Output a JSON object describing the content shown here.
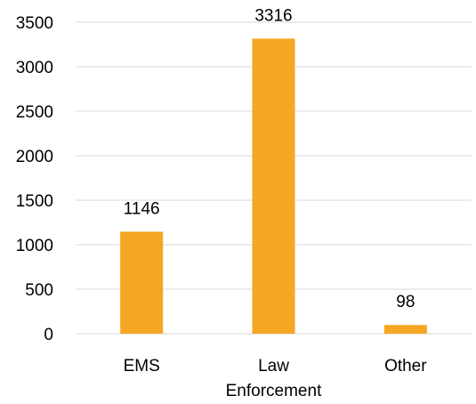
{
  "chart_data": {
    "type": "bar",
    "categories": [
      [
        "EMS"
      ],
      [
        "Law",
        "Enforcement"
      ],
      [
        "Other"
      ]
    ],
    "values": [
      1146,
      3316,
      98
    ],
    "data_labels": [
      "1146",
      "3316",
      "98"
    ],
    "ylim": [
      0,
      3500
    ],
    "yticks": [
      0,
      500,
      1000,
      1500,
      2000,
      2500,
      3000,
      3500
    ],
    "ytick_labels": [
      "0",
      "500",
      "1000",
      "1500",
      "2000",
      "2500",
      "3000",
      "3500"
    ],
    "grid": true,
    "legend": "none",
    "title": "",
    "xlabel": "",
    "ylabel": "",
    "bar_color": "#F5A623",
    "grid_color": "#D9D9D9"
  }
}
